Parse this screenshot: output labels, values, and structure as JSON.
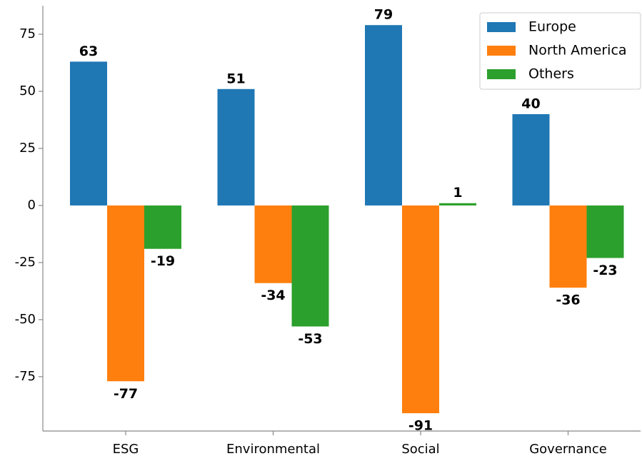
{
  "chart_data": {
    "type": "bar",
    "categories": [
      "ESG",
      "Environmental",
      "Social",
      "Governance"
    ],
    "series": [
      {
        "name": "Europe",
        "color": "#1f77b4",
        "values": [
          63,
          51,
          79,
          40
        ]
      },
      {
        "name": "North America",
        "color": "#ff7f0e",
        "values": [
          -77,
          -34,
          -91,
          -36
        ]
      },
      {
        "name": "Others",
        "color": "#2ca02c",
        "values": [
          -19,
          -53,
          1,
          -23
        ]
      }
    ],
    "ylim": [
      -98.8,
      87.5
    ],
    "yticks": [
      -75,
      -50,
      -25,
      0,
      25,
      50,
      75
    ],
    "legend": "upper right"
  }
}
